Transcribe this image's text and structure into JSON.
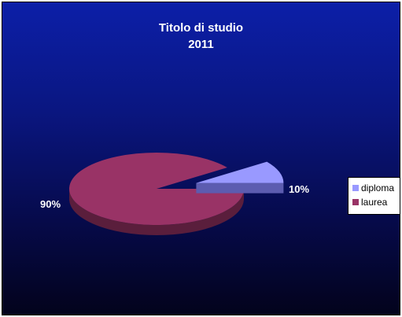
{
  "chart_data": {
    "type": "pie",
    "title": [
      "Titolo di studio",
      "2011"
    ],
    "slices": [
      {
        "name": "diploma",
        "value": 10,
        "label": "10%",
        "color": "#9999ff",
        "side_color": "#5c5cb0"
      },
      {
        "name": "laurea",
        "value": 90,
        "label": "90%",
        "color": "#993366",
        "side_color": "#5a1e3c"
      }
    ],
    "legend": {
      "position": "right",
      "entries": [
        "diploma",
        "laurea"
      ]
    },
    "background": [
      "#0c1fa8",
      "#03031c"
    ],
    "style": "3d-exploded"
  }
}
